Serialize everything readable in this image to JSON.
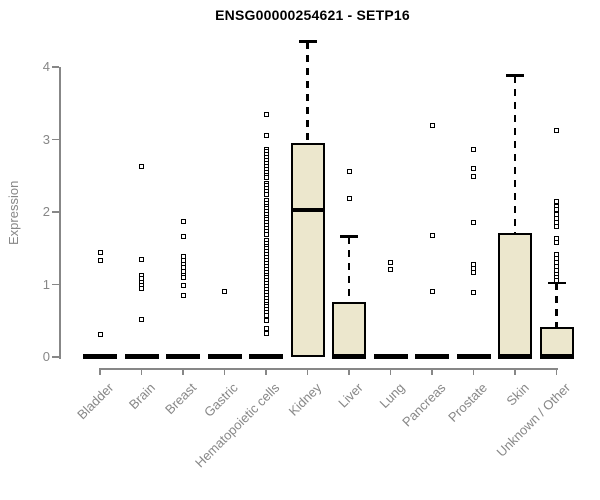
{
  "chart_data": {
    "type": "boxplot",
    "title": "ENSG00000254621 - SETP16",
    "ylabel": "Expression",
    "ylim": [
      0,
      4.35
    ],
    "yticks": [
      0,
      1,
      2,
      3,
      4
    ],
    "grid": false,
    "legend": "none",
    "box_fill": "#ece7cd",
    "box_border": "#000000",
    "axis_color": "#878787",
    "title_color": "#000000",
    "categories": [
      "Bladder",
      "Brain",
      "Breast",
      "Gastric",
      "Hematopoietic cells",
      "Kidney",
      "Liver",
      "Lung",
      "Pancreas",
      "Prostate",
      "Skin",
      "Unknown / Other"
    ],
    "groups": [
      {
        "name": "Bladder",
        "q1": 0,
        "median": 0,
        "q3": 0,
        "whisker_high": 0,
        "whisker_low": 0,
        "outliers": [
          1.44,
          1.33,
          0.31
        ]
      },
      {
        "name": "Brain",
        "q1": 0,
        "median": 0,
        "q3": 0,
        "whisker_high": 0,
        "whisker_low": 0,
        "outliers": [
          2.63,
          1.34,
          1.13,
          1.08,
          1.03,
          0.98,
          0.94,
          0.52
        ]
      },
      {
        "name": "Breast",
        "q1": 0,
        "median": 0,
        "q3": 0,
        "whisker_high": 0,
        "whisker_low": 0,
        "outliers": [
          1.87,
          1.66,
          1.38,
          1.33,
          1.28,
          1.23,
          1.18,
          1.13,
          1.09,
          0.98,
          0.85
        ]
      },
      {
        "name": "Gastric",
        "q1": 0,
        "median": 0,
        "q3": 0,
        "whisker_high": 0,
        "whisker_low": 0,
        "outliers": [
          0.91
        ]
      },
      {
        "name": "Hematopoietic cells",
        "q1": 0,
        "median": 0,
        "q3": 0,
        "whisker_high": 0,
        "whisker_low": 0,
        "outliers": [
          3.35,
          3.06,
          2.86,
          2.83,
          2.79,
          2.75,
          2.71,
          2.67,
          2.63,
          2.59,
          2.55,
          2.51,
          2.48,
          2.4,
          2.36,
          2.32,
          2.28,
          2.24,
          2.16,
          2.12,
          2.08,
          2.05,
          2.01,
          1.97,
          1.93,
          1.89,
          1.85,
          1.81,
          1.77,
          1.73,
          1.69,
          1.61,
          1.57,
          1.53,
          1.49,
          1.45,
          1.41,
          1.37,
          1.33,
          1.29,
          1.25,
          1.21,
          1.17,
          1.13,
          1.09,
          1.05,
          1.01,
          0.97,
          0.93,
          0.89,
          0.85,
          0.81,
          0.77,
          0.73,
          0.69,
          0.65,
          0.61,
          0.57,
          0.51,
          0.4,
          0.32
        ]
      },
      {
        "name": "Kidney",
        "q1": 0,
        "median": 2.03,
        "q3": 2.95,
        "whisker_high": 4.35,
        "whisker_low": 0,
        "outliers": []
      },
      {
        "name": "Liver",
        "q1": 0,
        "median": 0,
        "q3": 0.76,
        "whisker_high": 1.66,
        "whisker_low": 0,
        "outliers": [
          2.56,
          2.19
        ]
      },
      {
        "name": "Lung",
        "q1": 0,
        "median": 0,
        "q3": 0,
        "whisker_high": 0,
        "whisker_low": 0,
        "outliers": [
          1.31,
          1.21
        ]
      },
      {
        "name": "Pancreas",
        "q1": 0,
        "median": 0,
        "q3": 0,
        "whisker_high": 0,
        "whisker_low": 0,
        "outliers": [
          3.19,
          1.68,
          0.91
        ]
      },
      {
        "name": "Prostate",
        "q1": 0,
        "median": 0,
        "q3": 0,
        "whisker_high": 0,
        "whisker_low": 0,
        "outliers": [
          2.86,
          2.6,
          2.49,
          1.86,
          1.28,
          1.22,
          1.17,
          0.89
        ]
      },
      {
        "name": "Skin",
        "q1": 0,
        "median": 0,
        "q3": 1.71,
        "whisker_high": 3.88,
        "whisker_low": 0,
        "outliers": []
      },
      {
        "name": "Unknown / Other",
        "q1": 0,
        "median": 0,
        "q3": 0.42,
        "whisker_high": 1.02,
        "whisker_low": 0,
        "outliers": [
          3.12,
          2.14,
          2.08,
          2.03,
          1.97,
          1.91,
          1.85,
          1.8,
          1.63,
          1.58,
          1.42,
          1.36,
          1.3,
          1.25,
          1.19,
          1.14,
          1.1,
          1.05
        ]
      }
    ]
  }
}
